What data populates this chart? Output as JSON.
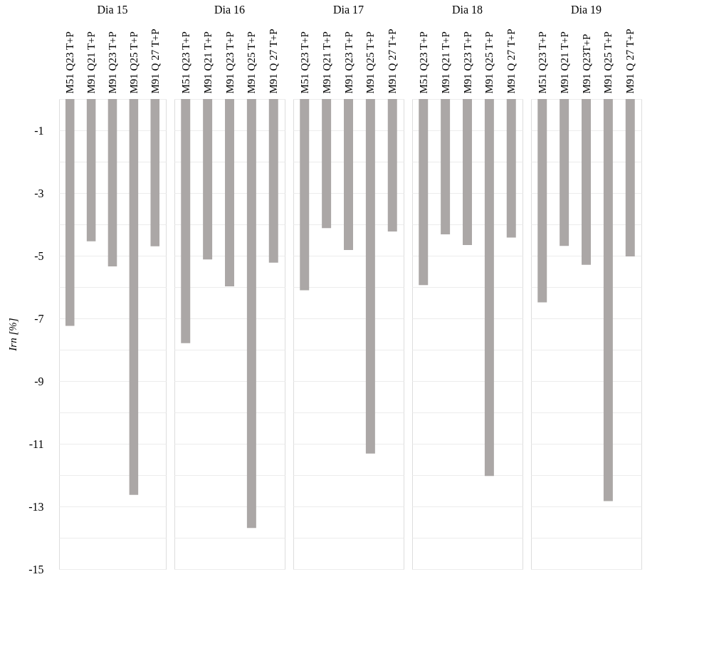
{
  "chart_data": [
    {
      "type": "bar",
      "title": "Dia 15",
      "ylabel": "Irn [%]",
      "categories": [
        "M51 Q23 T+P",
        "M91 Q21 T+P",
        "M91 Q23 T+P",
        "M91 Q25 T+P",
        "M91 Q 27 T+P"
      ],
      "values": [
        -7.24,
        -4.54,
        -5.34,
        -12.63,
        -4.7
      ],
      "color": "#aba7a6",
      "ylim": [
        -15,
        0
      ],
      "yticks": [
        {
          "value": 0,
          "label": null
        },
        -1,
        {
          "value": -2,
          "label": null
        },
        -3,
        {
          "value": -4,
          "label": null
        },
        -5,
        {
          "value": -6,
          "label": null
        },
        -7,
        {
          "value": -8,
          "label": null
        },
        -9,
        {
          "value": -10,
          "label": null
        },
        -11,
        {
          "value": -12,
          "label": null
        },
        -13,
        {
          "value": -14,
          "label": null
        },
        -15
      ],
      "grid": "y"
    },
    {
      "type": "bar",
      "title": "Dia 16",
      "categories": [
        "M51 Q23 T+P",
        "M91 Q21 T+P",
        "M91 Q23 T+P",
        "M91 Q25 T+P",
        "M91 Q 27 T+P"
      ],
      "values": [
        -7.79,
        -5.12,
        -5.98,
        -13.69,
        -5.22
      ],
      "color": "#aba7a6",
      "ylim": [
        -15,
        0
      ],
      "yticks": [
        {
          "value": 0,
          "label": null
        },
        -1,
        {
          "value": -2,
          "label": null
        },
        -3,
        {
          "value": -4,
          "label": null
        },
        -5,
        {
          "value": -6,
          "label": null
        },
        -7,
        {
          "value": -8,
          "label": null
        },
        -9,
        {
          "value": -10,
          "label": null
        },
        -11,
        {
          "value": -12,
          "label": null
        },
        -13,
        {
          "value": -14,
          "label": null
        },
        -15
      ],
      "grid": "y",
      "tick_labels": "x"
    },
    {
      "type": "bar",
      "title": "Dia 17",
      "categories": [
        "M51 Q23 T+P",
        "M91 Q21 T+P",
        "M91 Q23 T+P",
        "M91 Q25 T+P",
        "M91 Q 27 T+P"
      ],
      "values": [
        -6.1,
        -4.12,
        -4.82,
        -11.31,
        -4.23
      ],
      "color": "#aba7a6",
      "ylim": [
        -15,
        0
      ],
      "yticks": [
        {
          "value": 0,
          "label": null
        },
        -1,
        {
          "value": -2,
          "label": null
        },
        -3,
        {
          "value": -4,
          "label": null
        },
        -5,
        {
          "value": -6,
          "label": null
        },
        -7,
        {
          "value": -8,
          "label": null
        },
        -9,
        {
          "value": -10,
          "label": null
        },
        -11,
        {
          "value": -12,
          "label": null
        },
        -13,
        {
          "value": -14,
          "label": null
        },
        -15
      ],
      "grid": "y",
      "tick_labels": "x"
    },
    {
      "type": "bar",
      "title": "Dia 18",
      "categories": [
        "M51 Q23 T+P",
        "M91 Q21 T+P",
        "M91 Q23 T+P",
        "M91 Q25 T+P",
        "M91 Q 27 T+P"
      ],
      "values": [
        -5.94,
        -4.32,
        -4.66,
        -12.03,
        -4.42
      ],
      "color": "#aba7a6",
      "ylim": [
        -15,
        0
      ],
      "yticks": [
        {
          "value": 0,
          "label": null
        },
        -1,
        {
          "value": -2,
          "label": null
        },
        -3,
        {
          "value": -4,
          "label": null
        },
        -5,
        {
          "value": -6,
          "label": null
        },
        -7,
        {
          "value": -8,
          "label": null
        },
        -9,
        {
          "value": -10,
          "label": null
        },
        -11,
        {
          "value": -12,
          "label": null
        },
        -13,
        {
          "value": -14,
          "label": null
        },
        -15
      ],
      "grid": "y",
      "tick_labels": "x"
    },
    {
      "type": "bar",
      "title": "Dia 19",
      "categories": [
        "M51 Q23 T+P",
        "M91 Q21 T+P",
        "M91 Q23T+P",
        "M91 Q25 T+P",
        "M91 Q 27 T+P"
      ],
      "values": [
        -6.49,
        -4.69,
        -5.29,
        -12.83,
        -5.02
      ],
      "color": "#aba7a6",
      "ylim": [
        -15,
        0
      ],
      "yticks": [
        {
          "value": 0,
          "label": null
        },
        -1,
        {
          "value": -2,
          "label": null
        },
        -3,
        {
          "value": -4,
          "label": null
        },
        -5,
        {
          "value": -6,
          "label": null
        },
        -7,
        {
          "value": -8,
          "label": null
        },
        -9,
        {
          "value": -10,
          "label": null
        },
        -11,
        {
          "value": -12,
          "label": null
        },
        -13,
        {
          "value": -14,
          "label": null
        },
        -15
      ],
      "grid": "y",
      "tick_labels": "x"
    }
  ]
}
